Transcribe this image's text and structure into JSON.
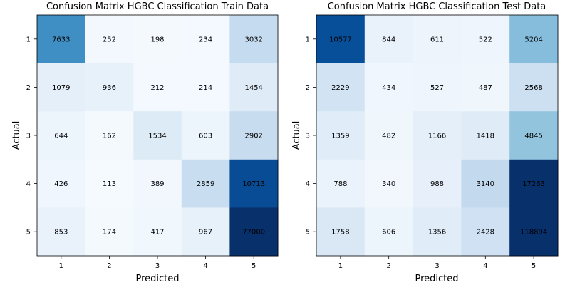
{
  "chart_data": [
    {
      "type": "heatmap",
      "title": "Confusion Matrix HGBC Classification Train Data",
      "xlabel": "Predicted",
      "ylabel": "Actual",
      "x_categories": [
        "1",
        "2",
        "3",
        "4",
        "5"
      ],
      "y_categories": [
        "1",
        "2",
        "3",
        "4",
        "5"
      ],
      "colormap": "Blues",
      "color_range": [
        0,
        12000
      ],
      "matrix": [
        [
          7633,
          252,
          198,
          234,
          3032
        ],
        [
          1079,
          936,
          212,
          214,
          1454
        ],
        [
          644,
          162,
          1534,
          603,
          2902
        ],
        [
          426,
          113,
          389,
          2859,
          10713
        ],
        [
          853,
          174,
          417,
          967,
          77000
        ]
      ]
    },
    {
      "type": "heatmap",
      "title": "Confusion Matrix HGBC Classification Test Data",
      "xlabel": "Predicted",
      "ylabel": "Actual",
      "x_categories": [
        "1",
        "2",
        "3",
        "4",
        "5"
      ],
      "y_categories": [
        "1",
        "2",
        "3",
        "4",
        "5"
      ],
      "colormap": "Blues",
      "color_range": [
        0,
        12000
      ],
      "matrix": [
        [
          10577,
          844,
          611,
          522,
          5204
        ],
        [
          2229,
          434,
          527,
          487,
          2568
        ],
        [
          1359,
          482,
          1166,
          1418,
          4845
        ],
        [
          788,
          340,
          988,
          3140,
          17263
        ],
        [
          1758,
          606,
          1356,
          2428,
          118894
        ]
      ]
    }
  ]
}
